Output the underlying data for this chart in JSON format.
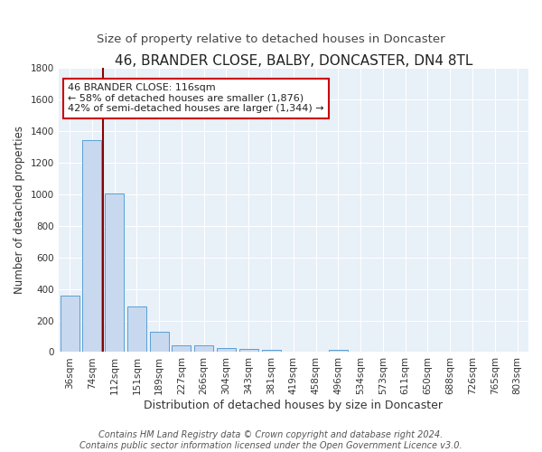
{
  "title": "46, BRANDER CLOSE, BALBY, DONCASTER, DN4 8TL",
  "subtitle": "Size of property relative to detached houses in Doncaster",
  "xlabel": "Distribution of detached houses by size in Doncaster",
  "ylabel": "Number of detached properties",
  "categories": [
    "36sqm",
    "74sqm",
    "112sqm",
    "151sqm",
    "189sqm",
    "227sqm",
    "266sqm",
    "304sqm",
    "343sqm",
    "381sqm",
    "419sqm",
    "458sqm",
    "496sqm",
    "534sqm",
    "573sqm",
    "611sqm",
    "650sqm",
    "688sqm",
    "726sqm",
    "765sqm",
    "803sqm"
  ],
  "values": [
    355,
    1340,
    1005,
    287,
    130,
    42,
    42,
    28,
    18,
    15,
    0,
    0,
    15,
    0,
    0,
    0,
    0,
    0,
    0,
    0,
    0
  ],
  "bar_color": "#c8d9ef",
  "bar_edge_color": "#5a9fd4",
  "bar_edge_width": 0.7,
  "bg_color": "#e8f0f8",
  "grid_color": "#ffffff",
  "vline_x": 1.5,
  "vline_color": "#8b0000",
  "annotation_text": "46 BRANDER CLOSE: 116sqm\n← 58% of detached houses are smaller (1,876)\n42% of semi-detached houses are larger (1,344) →",
  "annotation_box_color": "#ffffff",
  "annotation_edge_color": "#cc0000",
  "annotation_fontsize": 8,
  "title_fontsize": 11,
  "subtitle_fontsize": 9.5,
  "xlabel_fontsize": 9,
  "ylabel_fontsize": 8.5,
  "tick_fontsize": 7.5,
  "footer_text": "Contains HM Land Registry data © Crown copyright and database right 2024.\nContains public sector information licensed under the Open Government Licence v3.0.",
  "footer_fontsize": 7,
  "ylim": [
    0,
    1800
  ]
}
